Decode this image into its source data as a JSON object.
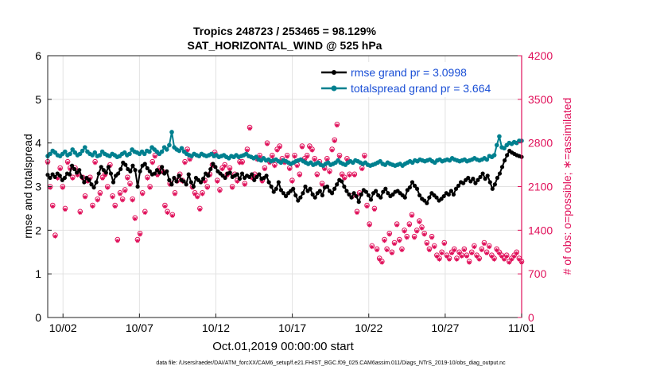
{
  "chart_data": {
    "type": "line",
    "title_line1": "Tropics 248723 / 253465 = 98.129%",
    "title_line2": "SAT_HORIZONTAL_WIND @ 525 hPa",
    "xlabel": "Oct.01,2019 00:00:00 start",
    "ylabel_left": "rmse and totalspread",
    "ylabel_right": "# of obs: o=possible; ∗=assimilated",
    "footer": "data file: /Users/raeder/DAI/ATM_forcXX/CAM6_setup/f.e21.FHIST_BGC.f09_025.CAM6assim.011/Diags_NTrS_2019-10/obs_diag_output.nc",
    "xlim": [
      1,
      32
    ],
    "ylim_left": [
      0,
      6
    ],
    "ylim_right": [
      0,
      4200
    ],
    "x_ticks": [
      {
        "v": 2,
        "label": "10/02"
      },
      {
        "v": 7,
        "label": "10/07"
      },
      {
        "v": 12,
        "label": "10/12"
      },
      {
        "v": 17,
        "label": "10/17"
      },
      {
        "v": 22,
        "label": "10/22"
      },
      {
        "v": 27,
        "label": "10/27"
      },
      {
        "v": 32,
        "label": "11/01"
      }
    ],
    "y_ticks_left": [
      "0",
      "1",
      "2",
      "3",
      "4",
      "5",
      "6"
    ],
    "y_ticks_right": [
      "0",
      "700",
      "1400",
      "2100",
      "2800",
      "3500",
      "4200"
    ],
    "series": [
      {
        "name": "rmse",
        "legend": "rmse grand pr = 3.0998",
        "color": "#000000",
        "marker": "star",
        "values": [
          3.27,
          3.2,
          3.28,
          3.22,
          3.3,
          3.25,
          3.15,
          3.2,
          3.3,
          3.28,
          3.48,
          3.4,
          3.32,
          3.38,
          3.22,
          3.1,
          3.2,
          3.15,
          3.05,
          2.98,
          3.1,
          3.3,
          3.45,
          3.38,
          3.32,
          3.45,
          3.3,
          3.1,
          3.25,
          3.3,
          3.4,
          3.55,
          3.5,
          3.4,
          3.35,
          3.48,
          3.38,
          3.0,
          3.35,
          3.48,
          3.52,
          3.42,
          3.35,
          3.28,
          3.3,
          3.38,
          3.32,
          3.45,
          3.3,
          3.35,
          3.15,
          3.05,
          3.2,
          3.12,
          3.25,
          3.15,
          3.12,
          3.05,
          3.28,
          3.1,
          3.0,
          3.2,
          3.15,
          3.1,
          3.18,
          3.3,
          3.25,
          3.4,
          3.52,
          3.45,
          3.35,
          3.3,
          3.25,
          3.2,
          3.3,
          3.32,
          3.22,
          3.25,
          3.28,
          3.18,
          3.3,
          3.2,
          3.25,
          3.22,
          3.28,
          3.15,
          3.22,
          3.28,
          3.18,
          3.2,
          3.25,
          3.1,
          3.0,
          2.88,
          2.95,
          3.1,
          2.92,
          2.85,
          2.78,
          2.85,
          2.9,
          2.95,
          2.8,
          2.68,
          2.75,
          2.85,
          3.0,
          2.9,
          2.95,
          2.82,
          2.75,
          2.85,
          2.9,
          2.8,
          2.98,
          3.0,
          2.9,
          2.85,
          2.95,
          3.05,
          3.15,
          3.12,
          3.0,
          2.9,
          2.82,
          2.75,
          2.85,
          2.78,
          2.65,
          2.82,
          2.92,
          2.88,
          2.8,
          2.7,
          2.85,
          2.9,
          2.8,
          2.75,
          2.88,
          2.95,
          2.85,
          2.78,
          2.82,
          2.88,
          2.9,
          2.85,
          2.8,
          2.75,
          2.92,
          2.98,
          3.1,
          3.02,
          2.95,
          2.8,
          2.72,
          2.68,
          2.62,
          2.75,
          2.85,
          2.8,
          2.75,
          2.68,
          2.72,
          2.78,
          2.85,
          2.82,
          2.9,
          2.82,
          2.95,
          3.02,
          3.1,
          3.08,
          3.15,
          3.2,
          3.12,
          3.18,
          3.08,
          3.15,
          3.22,
          3.3,
          3.18,
          3.25,
          3.1,
          2.95,
          3.05,
          3.2,
          3.3,
          3.45,
          3.6,
          3.72,
          3.82,
          3.78,
          3.75,
          3.72,
          3.7,
          3.68
        ]
      },
      {
        "name": "totalspread",
        "legend": "totalspread grand pr = 3.664",
        "color": "#00808f",
        "marker": "dot",
        "values": [
          3.7,
          3.75,
          3.82,
          3.78,
          3.72,
          3.7,
          3.75,
          3.8,
          3.72,
          3.75,
          3.85,
          3.78,
          3.72,
          3.75,
          3.82,
          3.9,
          3.8,
          3.75,
          3.72,
          3.78,
          3.7,
          3.72,
          3.8,
          3.75,
          3.72,
          3.7,
          3.75,
          3.72,
          3.68,
          3.7,
          3.75,
          3.78,
          3.72,
          3.75,
          3.85,
          3.8,
          3.78,
          3.75,
          3.8,
          3.75,
          3.82,
          3.8,
          3.9,
          3.85,
          3.8,
          3.75,
          3.8,
          3.9,
          3.85,
          3.95,
          4.25,
          3.9,
          3.85,
          3.82,
          3.88,
          3.8,
          3.75,
          3.72,
          3.7,
          3.75,
          3.72,
          3.7,
          3.75,
          3.72,
          3.7,
          3.72,
          3.75,
          3.7,
          3.72,
          3.68,
          3.7,
          3.72,
          3.68,
          3.65,
          3.7,
          3.68,
          3.72,
          3.68,
          3.7,
          3.72,
          3.75,
          3.7,
          3.68,
          3.65,
          3.68,
          3.62,
          3.6,
          3.65,
          3.6,
          3.62,
          3.58,
          3.6,
          3.62,
          3.58,
          3.55,
          3.6,
          3.58,
          3.55,
          3.52,
          3.55,
          3.58,
          3.6,
          3.62,
          3.58,
          3.55,
          3.52,
          3.55,
          3.5,
          3.52,
          3.55,
          3.5,
          3.48,
          3.52,
          3.55,
          3.5,
          3.52,
          3.55,
          3.6,
          3.55,
          3.52,
          3.5,
          3.55,
          3.58,
          3.55,
          3.6,
          3.58,
          3.55,
          3.52,
          3.55,
          3.5,
          3.48,
          3.5,
          3.52,
          3.55,
          3.58,
          3.52,
          3.5,
          3.55,
          3.52,
          3.5,
          3.48,
          3.5,
          3.52,
          3.48,
          3.52,
          3.55,
          3.58,
          3.55,
          3.6,
          3.58,
          3.62,
          3.6,
          3.58,
          3.6,
          3.62,
          3.58,
          3.55,
          3.6,
          3.62,
          3.58,
          3.6,
          3.62,
          3.6,
          3.65,
          3.62,
          3.6,
          3.58,
          3.6,
          3.62,
          3.58,
          3.6,
          3.62,
          3.65,
          3.62,
          3.6,
          3.62,
          3.65,
          3.62,
          3.7,
          3.68,
          3.72,
          3.95,
          4.15,
          3.9,
          3.88,
          3.95,
          4.0,
          3.98,
          4.02,
          4.0,
          4.05,
          4.05
        ]
      },
      {
        "name": "possible",
        "legend": "",
        "color": "#e0105a",
        "marker": "circle",
        "axis": "right",
        "values": [
          2500,
          2100,
          1800,
          1320,
          2250,
          2400,
          2100,
          1750,
          2500,
          2400,
          2250,
          2400,
          2300,
          1700,
          2250,
          1950,
          2200,
          2250,
          1800,
          2500,
          1900,
          2000,
          2250,
          2300,
          2100,
          2450,
          1950,
          1800,
          1250,
          2000,
          1900,
          2050,
          2250,
          2150,
          1900,
          1600,
          1250,
          1350,
          2000,
          1700,
          2250,
          2100,
          2500,
          2600,
          2300,
          2400,
          2350,
          1800,
          1700,
          2150,
          1650,
          2000,
          2200,
          2300,
          2200,
          2500,
          2700,
          2550,
          2100,
          2000,
          1950,
          1750,
          2000,
          2200,
          2100,
          2300,
          2450,
          2650,
          2200,
          2050,
          2400,
          2450,
          2300,
          2400,
          2100,
          2300,
          2200,
          2500,
          2500,
          2150,
          2700,
          3050,
          2250,
          2300,
          2550,
          2600,
          2200,
          2400,
          2800,
          2500,
          2600,
          2450,
          2700,
          2750,
          2550,
          2500,
          2600,
          2400,
          2200,
          2600,
          2450,
          2300,
          2750,
          2550,
          2600,
          2750,
          2700,
          2550,
          2300,
          2500,
          2150,
          2400,
          2550,
          2350,
          2700,
          2850,
          3100,
          2600,
          2300,
          2250,
          2550,
          2300,
          1950,
          2300,
          1700,
          2000,
          2400,
          2600,
          1800,
          1500,
          1150,
          1750,
          1100,
          950,
          900,
          1250,
          1100,
          1350,
          1050,
          1200,
          1500,
          1250,
          1100,
          1400,
          1300,
          1500,
          1650,
          1300,
          1400,
          1550,
          1450,
          1350,
          1200,
          1100,
          1300,
          1150,
          1000,
          950,
          1050,
          1200,
          1000,
          950,
          1050,
          1100,
          950,
          1050,
          1000,
          1100,
          1000,
          900,
          1050,
          1150,
          1000,
          950,
          1100,
          1200,
          1050,
          1150,
          1000,
          950,
          1100,
          1050,
          1000,
          950,
          1000,
          900,
          950,
          1000,
          1050,
          950,
          900
        ]
      },
      {
        "name": "assimilated",
        "legend": "",
        "color": "#e0105a",
        "marker": "asterisk",
        "axis": "right",
        "values": [
          2480,
          2080,
          1780,
          1300,
          2230,
          2380,
          2080,
          1730,
          2480,
          2380,
          2230,
          2380,
          2280,
          1680,
          2230,
          1930,
          2180,
          2230,
          1780,
          2480,
          1880,
          1980,
          2230,
          2280,
          2080,
          2430,
          1930,
          1780,
          1230,
          1980,
          1880,
          2030,
          2230,
          2130,
          1880,
          1580,
          1230,
          1330,
          1980,
          1680,
          2230,
          2080,
          2480,
          2580,
          2280,
          2380,
          2330,
          1780,
          1680,
          2130,
          1630,
          1980,
          2180,
          2280,
          2180,
          2480,
          2680,
          2530,
          2080,
          1980,
          1930,
          1730,
          1980,
          2180,
          2080,
          2280,
          2430,
          2630,
          2180,
          2030,
          2380,
          2430,
          2280,
          2380,
          2080,
          2280,
          2180,
          2480,
          2480,
          2130,
          2680,
          3030,
          2230,
          2280,
          2530,
          2580,
          2180,
          2380,
          2780,
          2480,
          2580,
          2430,
          2680,
          2730,
          2530,
          2480,
          2580,
          2380,
          2180,
          2580,
          2430,
          2280,
          2730,
          2530,
          2580,
          2730,
          2680,
          2530,
          2280,
          2480,
          2130,
          2380,
          2530,
          2330,
          2680,
          2830,
          3080,
          2580,
          2280,
          2230,
          2530,
          2280,
          1930,
          2280,
          1680,
          1980,
          2380,
          2580,
          1780,
          1480,
          1130,
          1730,
          1080,
          930,
          880,
          1230,
          1080,
          1330,
          1030,
          1180,
          1480,
          1230,
          1080,
          1380,
          1280,
          1480,
          1630,
          1280,
          1380,
          1530,
          1430,
          1330,
          1180,
          1080,
          1280,
          1130,
          980,
          930,
          1030,
          1180,
          980,
          930,
          1030,
          1080,
          930,
          1030,
          980,
          1080,
          980,
          880,
          1030,
          1130,
          980,
          930,
          1080,
          1180,
          1030,
          1130,
          980,
          930,
          1080,
          1030,
          980,
          930,
          980,
          880,
          930,
          980,
          1030,
          930,
          880
        ]
      }
    ]
  }
}
